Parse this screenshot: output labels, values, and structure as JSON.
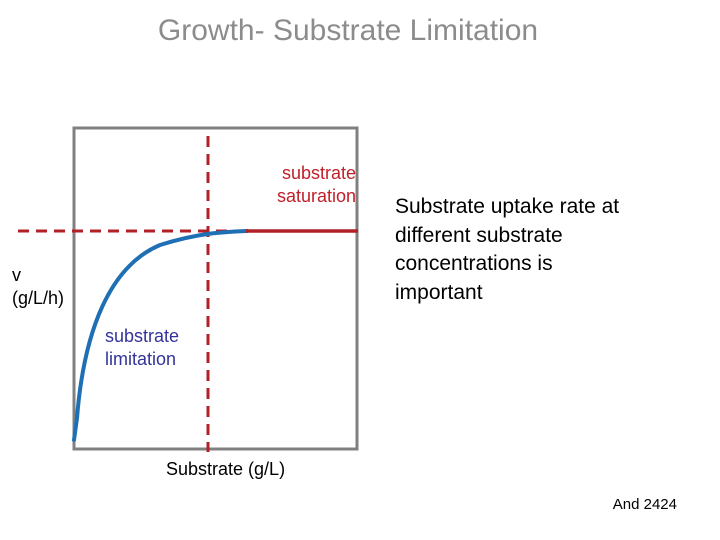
{
  "title": "Growth- Substrate Limitation",
  "labels": {
    "saturation": [
      "substrate",
      "saturation"
    ],
    "limitation": [
      "substrate",
      "limitation"
    ],
    "y_axis": [
      "v",
      "(g/L/h)"
    ],
    "x_axis": "Substrate (g/L)"
  },
  "description": [
    "Substrate uptake rate at",
    "different substrate",
    "concentrations is",
    "important"
  ],
  "footer": "And 2424",
  "colors": {
    "curve": "#1f6fb5",
    "dashed": "#b22028",
    "plateau": "#b22028",
    "frame": "#808080",
    "title": "#8c8c8c",
    "saturation_text": "#c0202a",
    "limitation_text": "#333399"
  },
  "chart_data": {
    "type": "line",
    "title": "",
    "xlabel": "Substrate (g/L)",
    "ylabel": "v (g/L/h)",
    "curve": "Monod saturation curve",
    "grid": false
  }
}
